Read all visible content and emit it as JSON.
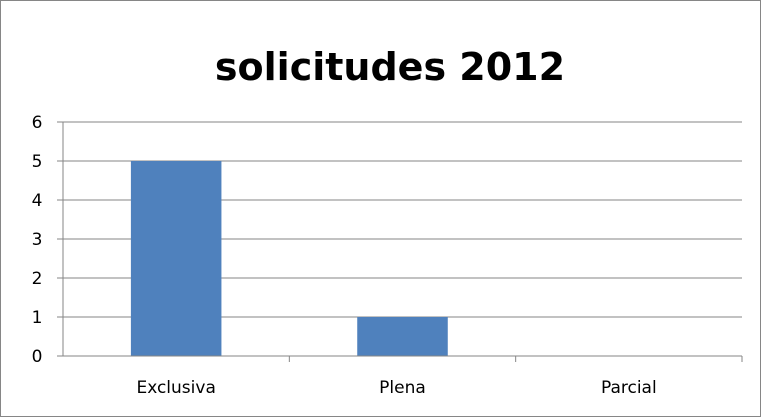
{
  "chart_data": {
    "type": "bar",
    "title": "solicitudes 2012",
    "categories": [
      "Exclusiva",
      "Plena",
      "Parcial"
    ],
    "values": [
      5,
      1,
      0
    ],
    "yticks": [
      "0",
      "1",
      "2",
      "3",
      "4",
      "5",
      "6"
    ],
    "ylim": [
      0,
      6
    ],
    "xlabel": "",
    "ylabel": "",
    "grid": true,
    "legend": "none",
    "colors": {
      "bar": "#4f81bd",
      "grid": "#868686",
      "axis": "#868686",
      "text": "#000000"
    }
  }
}
